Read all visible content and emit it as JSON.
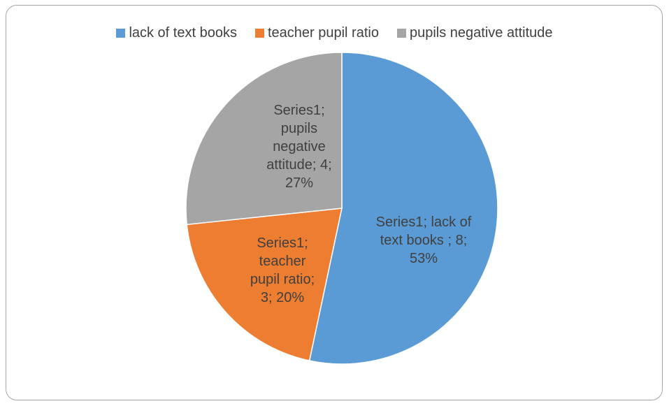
{
  "chart_data": {
    "type": "pie",
    "title": "",
    "series_name": "Series1",
    "categories": [
      "lack of text books",
      "teacher pupil ratio",
      "pupils negative attitude"
    ],
    "values": [
      8,
      3,
      4
    ],
    "percentages": [
      "53%",
      "20%",
      "27%"
    ],
    "colors": [
      "#5b9bd5",
      "#ed7d31",
      "#a5a5a5"
    ],
    "legend_position": "top",
    "data_labels": [
      [
        "Series1; lack of",
        "text books ; 8;",
        "53%"
      ],
      [
        "Series1;",
        "teacher",
        "pupil ratio;",
        "3; 20%"
      ],
      [
        "Series1;",
        "pupils",
        "negative",
        "attitude; 4;",
        "27%"
      ]
    ]
  }
}
